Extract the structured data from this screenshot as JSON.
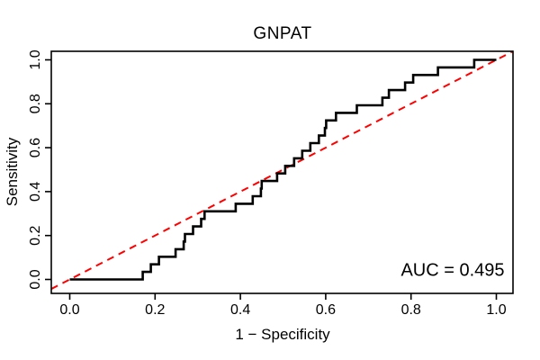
{
  "title": "GNPAT",
  "axes": {
    "x_label": "1 − Specificity",
    "y_label": "Sensitivity"
  },
  "annotation": {
    "auc_label": "AUC = 0.495",
    "auc_value": 0.495
  },
  "colors": {
    "background": "#ffffff",
    "curve": "#000000",
    "diagonal": "#ff0000",
    "text": "#000000",
    "border": "#000000"
  },
  "chart_data": {
    "type": "line",
    "subtype": "roc-step-curve",
    "title": "GNPAT",
    "xlabel": "1 − Specificity",
    "ylabel": "Sensitivity",
    "xlim": [
      0,
      1
    ],
    "ylim": [
      0,
      1
    ],
    "grid": false,
    "legend": "none",
    "x_ticks": [
      0,
      0.2,
      0.4,
      0.6,
      0.8,
      1
    ],
    "x_tick_labels": [
      "0.0",
      "0.2",
      "0.4",
      "0.6",
      "0.8",
      "1.0"
    ],
    "y_ticks": [
      0,
      0.2,
      0.4,
      0.6,
      0.8,
      1
    ],
    "y_tick_labels": [
      "0.0",
      "0.2",
      "0.4",
      "0.6",
      "0.8",
      "1.0"
    ],
    "auc": 0.495,
    "series": [
      {
        "name": "ROC curve",
        "style": "solid",
        "color": "#000000",
        "width": 2.6,
        "points": [
          [
            0,
            0
          ],
          [
            0.171,
            0
          ],
          [
            0.171,
            0.0345
          ],
          [
            0.19,
            0.0345
          ],
          [
            0.19,
            0.069
          ],
          [
            0.209,
            0.069
          ],
          [
            0.209,
            0.1034
          ],
          [
            0.248,
            0.1034
          ],
          [
            0.248,
            0.1379
          ],
          [
            0.267,
            0.1379
          ],
          [
            0.267,
            0.1724
          ],
          [
            0.27,
            0.1724
          ],
          [
            0.27,
            0.2069
          ],
          [
            0.289,
            0.2069
          ],
          [
            0.289,
            0.2414
          ],
          [
            0.308,
            0.2414
          ],
          [
            0.308,
            0.2759
          ],
          [
            0.316,
            0.2759
          ],
          [
            0.316,
            0.3103
          ],
          [
            0.389,
            0.3103
          ],
          [
            0.389,
            0.3448
          ],
          [
            0.429,
            0.3448
          ],
          [
            0.429,
            0.3793
          ],
          [
            0.448,
            0.3793
          ],
          [
            0.448,
            0.4138
          ],
          [
            0.45,
            0.4138
          ],
          [
            0.45,
            0.4483
          ],
          [
            0.486,
            0.4483
          ],
          [
            0.486,
            0.4828
          ],
          [
            0.505,
            0.4828
          ],
          [
            0.505,
            0.5172
          ],
          [
            0.526,
            0.5172
          ],
          [
            0.526,
            0.5517
          ],
          [
            0.545,
            0.5517
          ],
          [
            0.545,
            0.5862
          ],
          [
            0.564,
            0.5862
          ],
          [
            0.564,
            0.6207
          ],
          [
            0.584,
            0.6207
          ],
          [
            0.584,
            0.6552
          ],
          [
            0.598,
            0.6552
          ],
          [
            0.598,
            0.6897
          ],
          [
            0.601,
            0.6897
          ],
          [
            0.601,
            0.7241
          ],
          [
            0.624,
            0.7241
          ],
          [
            0.624,
            0.7586
          ],
          [
            0.673,
            0.7586
          ],
          [
            0.673,
            0.7931
          ],
          [
            0.733,
            0.7931
          ],
          [
            0.733,
            0.8276
          ],
          [
            0.748,
            0.8276
          ],
          [
            0.748,
            0.8621
          ],
          [
            0.786,
            0.8621
          ],
          [
            0.786,
            0.8966
          ],
          [
            0.805,
            0.8966
          ],
          [
            0.805,
            0.931
          ],
          [
            0.863,
            0.931
          ],
          [
            0.863,
            0.9655
          ],
          [
            0.948,
            0.9655
          ],
          [
            0.948,
            1
          ],
          [
            1,
            1
          ]
        ]
      },
      {
        "name": "Chance diagonal",
        "style": "dashed",
        "color": "#ff0000",
        "width": 2,
        "points": [
          [
            0,
            0
          ],
          [
            1,
            1
          ]
        ]
      }
    ]
  }
}
